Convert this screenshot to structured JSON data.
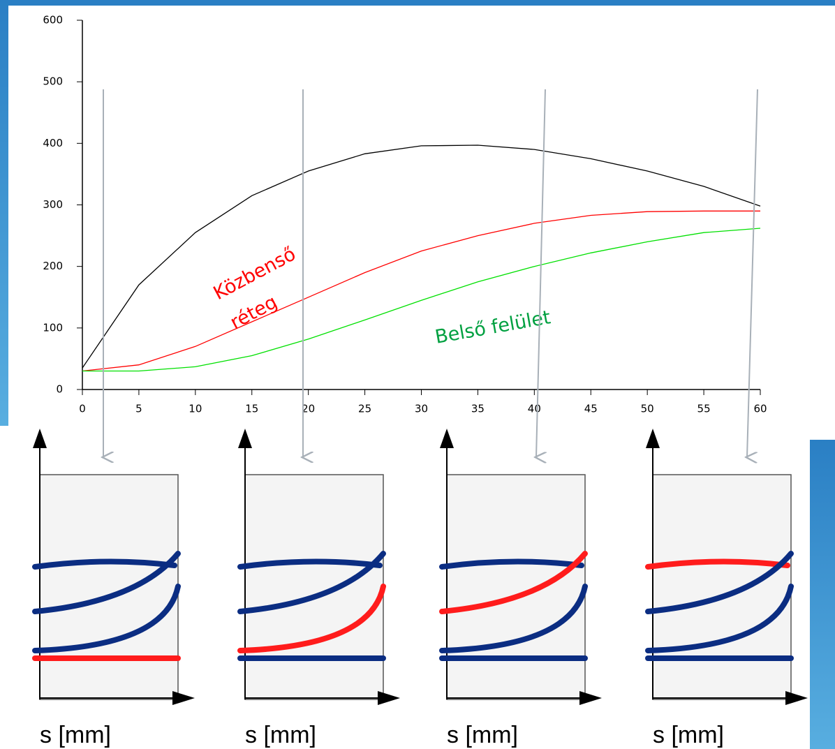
{
  "chart_data": {
    "type": "line",
    "x": [
      0,
      5,
      10,
      15,
      20,
      25,
      30,
      35,
      40,
      45,
      50,
      55,
      60
    ],
    "series": [
      {
        "color": "#000000",
        "values": [
          35,
          170,
          255,
          315,
          355,
          383,
          396,
          397,
          390,
          375,
          355,
          330,
          298
        ]
      },
      {
        "color": "#ff0000",
        "values": [
          30,
          40,
          70,
          110,
          150,
          190,
          225,
          250,
          270,
          283,
          289,
          290,
          290
        ]
      },
      {
        "color": "#00e000",
        "values": [
          30,
          30,
          37,
          55,
          82,
          113,
          145,
          175,
          200,
          222,
          240,
          255,
          262
        ]
      }
    ],
    "annotations": [
      {
        "text": "Közbenső",
        "color": "#ff0000"
      },
      {
        "text": "réteg",
        "color": "#ff0000"
      },
      {
        "text": "Belső felület",
        "color": "#00a040"
      }
    ],
    "xlim": [
      0,
      60
    ],
    "xticks": [
      0,
      5,
      10,
      15,
      20,
      25,
      30,
      35,
      40,
      45,
      50,
      55,
      60
    ],
    "ylim": [
      0,
      600
    ],
    "yticks": [
      0,
      100,
      200,
      300,
      400,
      500,
      600
    ]
  },
  "panels": [
    "s [mm]",
    "s [mm]",
    "s [mm]",
    "s [mm]"
  ]
}
